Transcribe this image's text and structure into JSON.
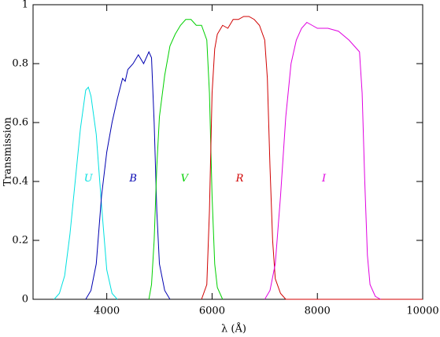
{
  "chart_data": {
    "type": "line",
    "xlabel": "λ (Å)",
    "ylabel": "Transmission",
    "xlim": [
      2600,
      10000
    ],
    "ylim": [
      0,
      1
    ],
    "xticks": [
      4000,
      6000,
      8000,
      10000
    ],
    "yticks": [
      0,
      0.2,
      0.4,
      0.6,
      0.8,
      1
    ],
    "series": [
      {
        "name": "U",
        "color": "#00e0e0",
        "x": [
          3000,
          3100,
          3200,
          3300,
          3400,
          3500,
          3600,
          3650,
          3700,
          3800,
          3900,
          4000,
          4100,
          4200
        ],
        "values": [
          0,
          0.02,
          0.08,
          0.22,
          0.4,
          0.58,
          0.71,
          0.72,
          0.69,
          0.56,
          0.32,
          0.1,
          0.02,
          0
        ]
      },
      {
        "name": "B",
        "color": "#0000b0",
        "x": [
          3600,
          3700,
          3800,
          3900,
          4000,
          4100,
          4200,
          4300,
          4350,
          4400,
          4500,
          4600,
          4700,
          4800,
          4850,
          4900,
          4950,
          5000,
          5100,
          5200
        ],
        "values": [
          0,
          0.03,
          0.12,
          0.35,
          0.5,
          0.6,
          0.68,
          0.75,
          0.74,
          0.78,
          0.8,
          0.83,
          0.8,
          0.84,
          0.82,
          0.6,
          0.3,
          0.12,
          0.03,
          0
        ]
      },
      {
        "name": "V",
        "color": "#00d000",
        "x": [
          4800,
          4850,
          4900,
          4950,
          5000,
          5100,
          5200,
          5300,
          5400,
          5500,
          5600,
          5700,
          5800,
          5900,
          5950,
          6000,
          6050,
          6100,
          6200
        ],
        "values": [
          0,
          0.05,
          0.2,
          0.45,
          0.62,
          0.76,
          0.86,
          0.9,
          0.93,
          0.95,
          0.95,
          0.93,
          0.93,
          0.88,
          0.7,
          0.35,
          0.12,
          0.04,
          0
        ]
      },
      {
        "name": "R",
        "color": "#d00000",
        "x": [
          5800,
          5900,
          5950,
          6000,
          6050,
          6100,
          6200,
          6300,
          6400,
          6500,
          6600,
          6700,
          6800,
          6900,
          7000,
          7050,
          7100,
          7150,
          7200,
          7300,
          7400,
          10000
        ],
        "values": [
          0,
          0.05,
          0.3,
          0.7,
          0.85,
          0.9,
          0.93,
          0.92,
          0.95,
          0.95,
          0.96,
          0.96,
          0.95,
          0.93,
          0.88,
          0.75,
          0.45,
          0.2,
          0.07,
          0.02,
          0,
          0
        ]
      },
      {
        "name": "I",
        "color": "#e000e0",
        "x": [
          7000,
          7100,
          7200,
          7300,
          7400,
          7500,
          7600,
          7700,
          7800,
          7900,
          8000,
          8200,
          8400,
          8600,
          8800,
          8850,
          8900,
          8950,
          9000,
          9100,
          9200
        ],
        "values": [
          0,
          0.03,
          0.12,
          0.35,
          0.62,
          0.8,
          0.88,
          0.92,
          0.94,
          0.93,
          0.92,
          0.92,
          0.91,
          0.88,
          0.84,
          0.7,
          0.4,
          0.15,
          0.05,
          0.01,
          0
        ]
      }
    ]
  }
}
